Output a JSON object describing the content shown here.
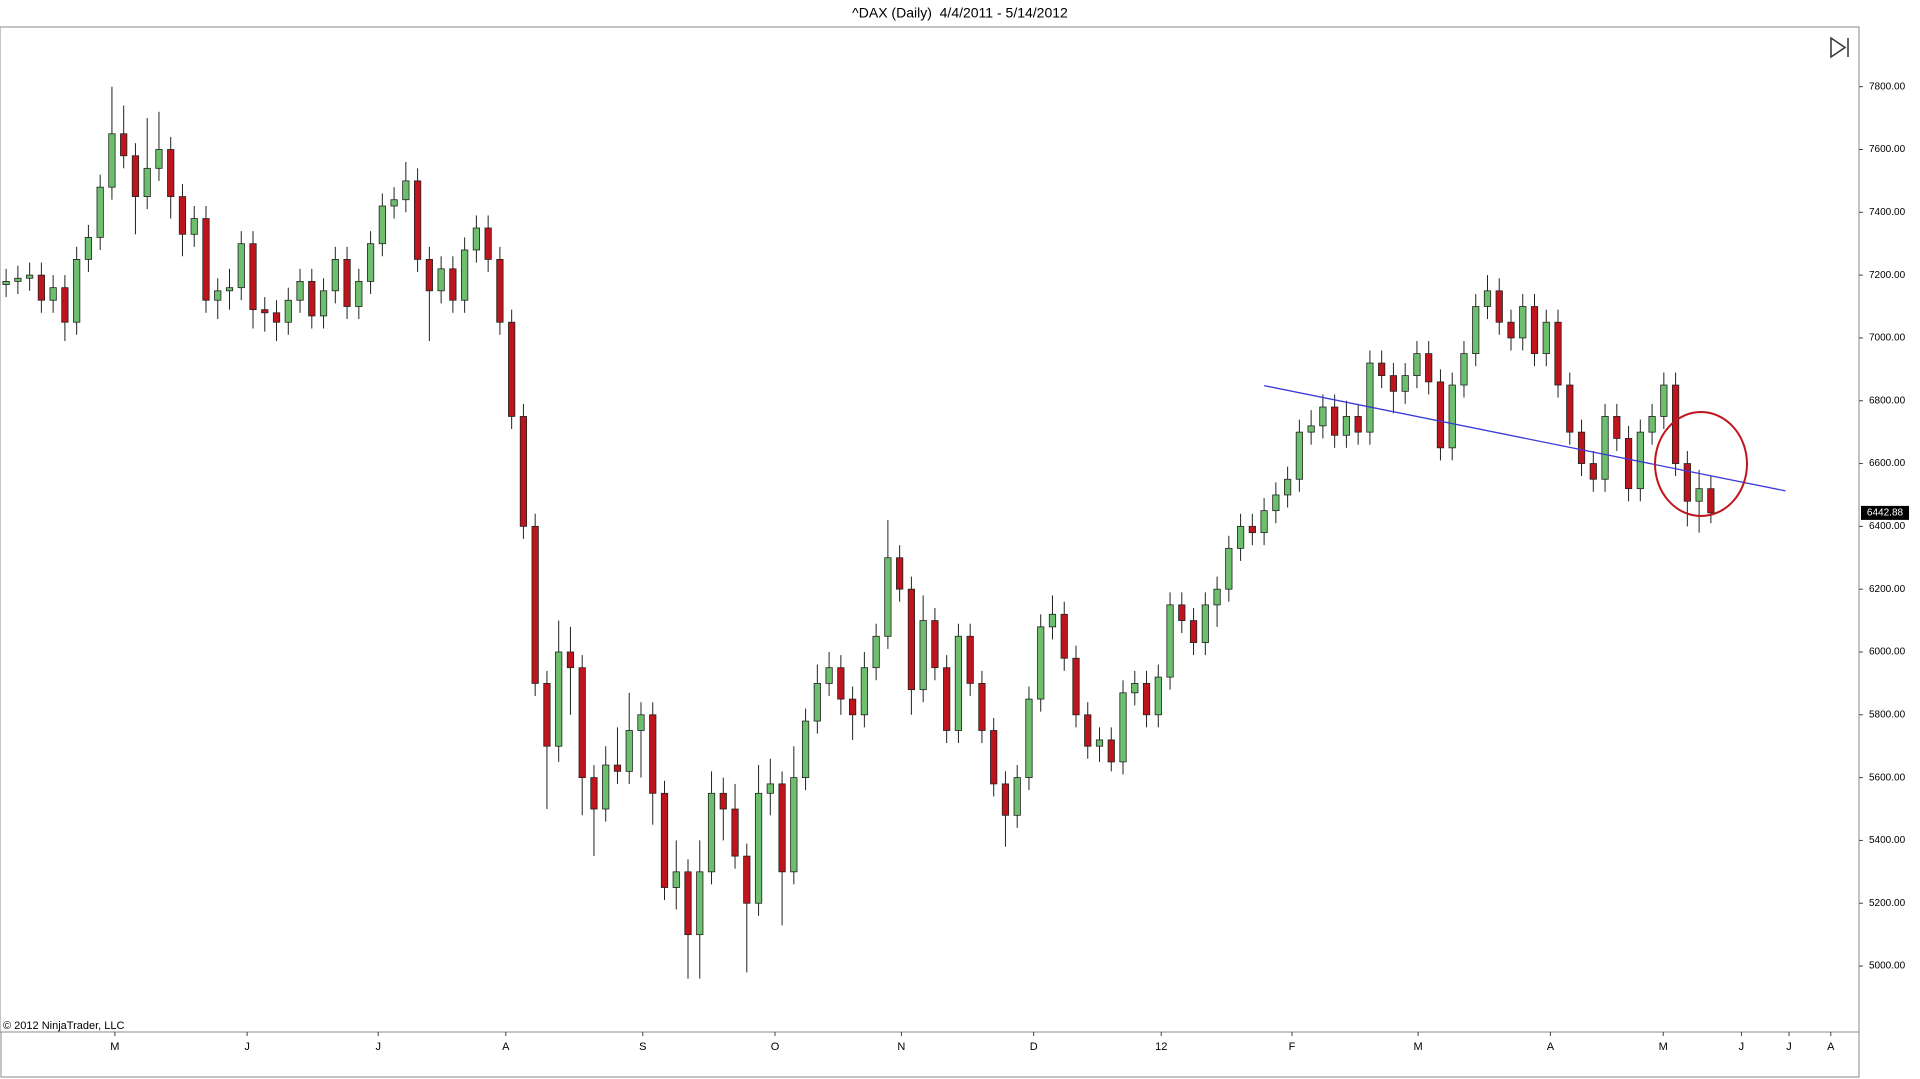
{
  "chart_data": {
    "type": "candlestick",
    "title": "^DAX (Daily)  4/4/2011 - 5/14/2012",
    "credit": "© 2012 NinjaTrader, LLC",
    "x": [
      0,
      2,
      4,
      6,
      8,
      10,
      12,
      14,
      16,
      18,
      20,
      22,
      24,
      26,
      28,
      30,
      32,
      34,
      36,
      38,
      40,
      42,
      44,
      46,
      48,
      50,
      52,
      54,
      56,
      58,
      60,
      62,
      64,
      66,
      68,
      70,
      72,
      74,
      76,
      78,
      80,
      82,
      84,
      86,
      88,
      90,
      92,
      94,
      96,
      98,
      100,
      102,
      104,
      106,
      108,
      110,
      112,
      114,
      116,
      118,
      120,
      122,
      124,
      126,
      128,
      130,
      132,
      134,
      136,
      138,
      140,
      142,
      144,
      146,
      148,
      150,
      152,
      154,
      156,
      158,
      160,
      162,
      164,
      166,
      168,
      170,
      172,
      174,
      176,
      178,
      180,
      182,
      184,
      186,
      188,
      190,
      192,
      194,
      196,
      198,
      200,
      202,
      204,
      206,
      208,
      210,
      212,
      214,
      216,
      218,
      220,
      222,
      224,
      226,
      228,
      230,
      232,
      234,
      236,
      238,
      240,
      242,
      244,
      246,
      248,
      250,
      252,
      254,
      256,
      258,
      260,
      262,
      264,
      266,
      268,
      270,
      272,
      274,
      276,
      278,
      280,
      282,
      284,
      286,
      288,
      290
    ],
    "open": [
      7170,
      7180,
      7190,
      7200,
      7120,
      7160,
      7050,
      7250,
      7320,
      7480,
      7650,
      7580,
      7450,
      7540,
      7600,
      7450,
      7330,
      7380,
      7120,
      7150,
      7160,
      7300,
      7090,
      7080,
      7050,
      7120,
      7180,
      7070,
      7150,
      7250,
      7100,
      7180,
      7300,
      7420,
      7440,
      7500,
      7250,
      7150,
      7220,
      7120,
      7280,
      7350,
      7250,
      7050,
      6750,
      6400,
      5900,
      5700,
      6000,
      5950,
      5600,
      5500,
      5640,
      5620,
      5750,
      5800,
      5550,
      5250,
      5300,
      5100,
      5300,
      5550,
      5500,
      5350,
      5200,
      5550,
      5580,
      5300,
      5600,
      5780,
      5900,
      5950,
      5850,
      5800,
      5950,
      6050,
      6300,
      6200,
      5880,
      6100,
      5950,
      5750,
      6050,
      5900,
      5750,
      5580,
      5480,
      5600,
      5850,
      6080,
      6120,
      5980,
      5800,
      5700,
      5720,
      5650,
      5870,
      5900,
      5800,
      5920,
      6150,
      6100,
      6030,
      6150,
      6200,
      6330,
      6400,
      6380,
      6450,
      6500,
      6550,
      6700,
      6720,
      6780,
      6690,
      6750,
      6700,
      6920,
      6880,
      6830,
      6880,
      6950,
      6860,
      6650,
      6850,
      6950,
      7100,
      7150,
      7050,
      7000,
      7100,
      6950,
      7050,
      6850,
      6700,
      6600,
      6550,
      6750,
      6680,
      6520,
      6700,
      6750,
      6850,
      6600,
      6480,
      6520
    ],
    "high": [
      7220,
      7230,
      7240,
      7240,
      7200,
      7200,
      7290,
      7360,
      7520,
      7800,
      7740,
      7620,
      7700,
      7720,
      7640,
      7490,
      7420,
      7420,
      7190,
      7220,
      7340,
      7340,
      7130,
      7120,
      7160,
      7220,
      7220,
      7190,
      7290,
      7290,
      7220,
      7340,
      7460,
      7480,
      7560,
      7540,
      7290,
      7260,
      7260,
      7320,
      7390,
      7390,
      7290,
      7090,
      6790,
      6440,
      5940,
      6100,
      6080,
      5990,
      5640,
      5700,
      5760,
      5870,
      5840,
      5840,
      5590,
      5400,
      5340,
      5400,
      5620,
      5600,
      5580,
      5390,
      5640,
      5660,
      5620,
      5700,
      5820,
      5960,
      6000,
      5990,
      5890,
      6000,
      6090,
      6420,
      6340,
      6240,
      6180,
      6140,
      5990,
      6090,
      6090,
      5940,
      5790,
      5620,
      5640,
      5890,
      6120,
      6180,
      6160,
      6020,
      5840,
      5760,
      5760,
      5910,
      5940,
      5940,
      5960,
      6190,
      6190,
      6140,
      6190,
      6240,
      6370,
      6440,
      6440,
      6490,
      6540,
      6590,
      6740,
      6770,
      6820,
      6820,
      6800,
      6790,
      6960,
      6960,
      6920,
      6920,
      6990,
      6990,
      6900,
      6890,
      6990,
      7140,
      7200,
      7190,
      7090,
      7140,
      7140,
      7090,
      7090,
      6890,
      6740,
      6640,
      6790,
      6790,
      6720,
      6740,
      6790,
      6890,
      6890,
      6640,
      6580,
      6560
    ],
    "low": [
      7130,
      7140,
      7150,
      7080,
      7080,
      6990,
      7010,
      7210,
      7280,
      7440,
      7540,
      7330,
      7410,
      7500,
      7380,
      7260,
      7290,
      7080,
      7060,
      7090,
      7120,
      7030,
      7020,
      6990,
      7010,
      7080,
      7030,
      7030,
      7110,
      7060,
      7060,
      7140,
      7260,
      7380,
      7400,
      7210,
      6990,
      7110,
      7080,
      7080,
      7240,
      7210,
      7010,
      6710,
      6360,
      5860,
      5500,
      5650,
      5800,
      5480,
      5350,
      5460,
      5580,
      5580,
      5600,
      5450,
      5210,
      5180,
      4960,
      4960,
      5260,
      5400,
      5310,
      4980,
      5160,
      5480,
      5130,
      5260,
      5560,
      5740,
      5860,
      5800,
      5720,
      5760,
      5910,
      6010,
      6160,
      5800,
      5840,
      5910,
      5710,
      5710,
      5860,
      5710,
      5540,
      5380,
      5440,
      5560,
      5810,
      6040,
      5940,
      5760,
      5660,
      5650,
      5620,
      5610,
      5830,
      5760,
      5760,
      5880,
      6060,
      5990,
      5990,
      6080,
      6160,
      6290,
      6340,
      6340,
      6410,
      6460,
      6510,
      6660,
      6680,
      6650,
      6650,
      6660,
      6660,
      6840,
      6760,
      6790,
      6840,
      6820,
      6610,
      6610,
      6810,
      6910,
      7060,
      7010,
      6960,
      6960,
      6910,
      6910,
      6810,
      6660,
      6560,
      6510,
      6510,
      6640,
      6480,
      6480,
      6660,
      6710,
      6560,
      6400,
      6380,
      6410
    ],
    "close": [
      7180,
      7190,
      7200,
      7120,
      7160,
      7050,
      7250,
      7320,
      7480,
      7650,
      7580,
      7450,
      7540,
      7600,
      7450,
      7330,
      7380,
      7120,
      7150,
      7160,
      7300,
      7090,
      7080,
      7050,
      7120,
      7180,
      7070,
      7150,
      7250,
      7100,
      7180,
      7300,
      7420,
      7440,
      7500,
      7250,
      7150,
      7220,
      7120,
      7280,
      7350,
      7250,
      7050,
      6750,
      6400,
      5900,
      5700,
      6000,
      5950,
      5600,
      5500,
      5640,
      5620,
      5750,
      5800,
      5550,
      5250,
      5300,
      5100,
      5300,
      5550,
      5500,
      5350,
      5200,
      5550,
      5580,
      5300,
      5600,
      5780,
      5900,
      5950,
      5850,
      5800,
      5950,
      6050,
      6300,
      6200,
      5880,
      6100,
      5950,
      5750,
      6050,
      5900,
      5750,
      5580,
      5480,
      5600,
      5850,
      6080,
      6120,
      5980,
      5800,
      5700,
      5720,
      5650,
      5870,
      5900,
      5800,
      5920,
      6150,
      6100,
      6030,
      6150,
      6200,
      6330,
      6400,
      6380,
      6450,
      6500,
      6550,
      6700,
      6720,
      6780,
      6690,
      6750,
      6700,
      6920,
      6880,
      6830,
      6880,
      6950,
      6860,
      6650,
      6850,
      6950,
      7100,
      7150,
      7050,
      7000,
      7100,
      6950,
      7050,
      6850,
      6700,
      6600,
      6550,
      6750,
      6680,
      6520,
      6700,
      6750,
      6850,
      6600,
      6480,
      6520,
      6442.88
    ],
    "up_color": "#6cbf6c",
    "down_color": "#c0141c",
    "xlim": [
      -1.04,
      315.2
    ],
    "xticks": [
      {
        "value": 18.5,
        "label": "M"
      },
      {
        "value": 41,
        "label": "J"
      },
      {
        "value": 63.3,
        "label": "J"
      },
      {
        "value": 85,
        "label": "A"
      },
      {
        "value": 108.3,
        "label": "S"
      },
      {
        "value": 130.8,
        "label": "O"
      },
      {
        "value": 152.3,
        "label": "N"
      },
      {
        "value": 174.8,
        "label": "D"
      },
      {
        "value": 196.5,
        "label": "12"
      },
      {
        "value": 218.75,
        "label": "F"
      },
      {
        "value": 240.2,
        "label": "M"
      },
      {
        "value": 262.7,
        "label": "A"
      },
      {
        "value": 281.9,
        "label": "M"
      },
      {
        "value": 295.2,
        "label": "J"
      },
      {
        "value": 303.3,
        "label": "J"
      },
      {
        "value": 310.4,
        "label": "A"
      }
    ],
    "ylim": [
      4790,
      7990
    ],
    "yticks": [
      {
        "value": 5000,
        "label": "5000.00"
      },
      {
        "value": 5200,
        "label": "5200.00"
      },
      {
        "value": 5400,
        "label": "5400.00"
      },
      {
        "value": 5600,
        "label": "5600.00"
      },
      {
        "value": 5800,
        "label": "5800.00"
      },
      {
        "value": 6000,
        "label": "6000.00"
      },
      {
        "value": 6200,
        "label": "6200.00"
      },
      {
        "value": 6400,
        "label": "6400.00"
      },
      {
        "value": 6600,
        "label": "6600.00"
      },
      {
        "value": 6800,
        "label": "6800.00"
      },
      {
        "value": 7000,
        "label": "7000.00"
      },
      {
        "value": 7200,
        "label": "7200.00"
      },
      {
        "value": 7400,
        "label": "7400.00"
      },
      {
        "value": 7600,
        "label": "7600.00"
      },
      {
        "value": 7800,
        "label": "7800.00"
      }
    ],
    "trendline": {
      "x": [
        214,
        302.7
      ],
      "y": [
        6848,
        6513
      ],
      "color": "#3a3ad8"
    }
  }
}
